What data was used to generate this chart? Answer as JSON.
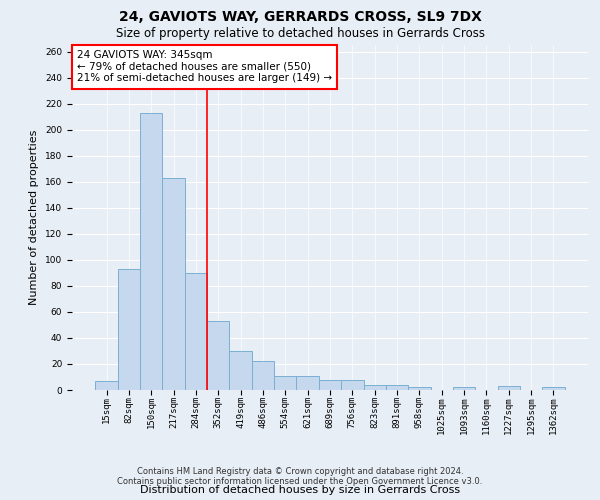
{
  "title": "24, GAVIOTS WAY, GERRARDS CROSS, SL9 7DX",
  "subtitle": "Size of property relative to detached houses in Gerrards Cross",
  "xlabel": "Distribution of detached houses by size in Gerrards Cross",
  "ylabel": "Number of detached properties",
  "categories": [
    "15sqm",
    "82sqm",
    "150sqm",
    "217sqm",
    "284sqm",
    "352sqm",
    "419sqm",
    "486sqm",
    "554sqm",
    "621sqm",
    "689sqm",
    "756sqm",
    "823sqm",
    "891sqm",
    "958sqm",
    "1025sqm",
    "1093sqm",
    "1160sqm",
    "1227sqm",
    "1295sqm",
    "1362sqm"
  ],
  "values": [
    7,
    93,
    213,
    163,
    90,
    53,
    30,
    22,
    11,
    11,
    8,
    8,
    4,
    4,
    2,
    0,
    2,
    0,
    3,
    0,
    2
  ],
  "bar_color": "#c5d8ed",
  "bar_edge_color": "#7ab0d4",
  "annotation_text_line1": "24 GAVIOTS WAY: 345sqm",
  "annotation_text_line2": "← 79% of detached houses are smaller (550)",
  "annotation_text_line3": "21% of semi-detached houses are larger (149) →",
  "annotation_box_color": "white",
  "annotation_box_edge": "red",
  "vline_color": "red",
  "vline_x": 4.5,
  "ylim": [
    0,
    265
  ],
  "yticks": [
    0,
    20,
    40,
    60,
    80,
    100,
    120,
    140,
    160,
    180,
    200,
    220,
    240,
    260
  ],
  "footnote1": "Contains HM Land Registry data © Crown copyright and database right 2024.",
  "footnote2": "Contains public sector information licensed under the Open Government Licence v3.0.",
  "title_fontsize": 10,
  "subtitle_fontsize": 8.5,
  "xlabel_fontsize": 8,
  "ylabel_fontsize": 8,
  "tick_fontsize": 6.5,
  "annotation_fontsize": 7.5,
  "footnote_fontsize": 6,
  "bg_color": "#e8eef5"
}
